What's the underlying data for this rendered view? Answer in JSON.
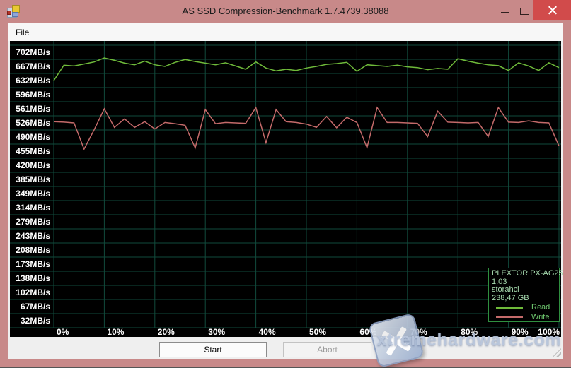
{
  "window": {
    "title": "AS SSD Compression-Benchmark 1.7.4739.38088",
    "titlebar_color": "#c88989",
    "close_button_color": "#d14b4b"
  },
  "menu": {
    "items": [
      {
        "label": "File"
      }
    ]
  },
  "buttons": {
    "start": "Start",
    "abort": "Abort"
  },
  "legend": {
    "device": "PLEXTOR PX-AG25",
    "firmware": "1.03",
    "driver": "storahci",
    "capacity": "238,47 GB",
    "read_label": "Read",
    "write_label": "Write"
  },
  "watermark": {
    "text": "xtremehardware.com"
  },
  "chart_data": {
    "type": "line",
    "title": "",
    "xlabel": "",
    "ylabel": "",
    "background": "#000000",
    "grid_color": "#114a3c",
    "grid": true,
    "legend_position": "bottom-right",
    "y_tick_max": 702,
    "y_tick_min": 32,
    "y_tick_step": 35,
    "y_ticks": [
      "702MB/s",
      "667MB/s",
      "632MB/s",
      "596MB/s",
      "561MB/s",
      "526MB/s",
      "490MB/s",
      "455MB/s",
      "420MB/s",
      "385MB/s",
      "349MB/s",
      "314MB/s",
      "279MB/s",
      "243MB/s",
      "208MB/s",
      "173MB/s",
      "138MB/s",
      "102MB/s",
      "67MB/s",
      "32MB/s"
    ],
    "x_ticks": [
      "0%",
      "10%",
      "20%",
      "30%",
      "40%",
      "50%",
      "60%",
      "70%",
      "80%",
      "90%",
      "100%"
    ],
    "x": [
      0,
      2,
      4,
      6,
      8,
      10,
      12,
      14,
      16,
      18,
      20,
      22,
      24,
      26,
      28,
      30,
      32,
      34,
      36,
      38,
      40,
      42,
      44,
      46,
      48,
      50,
      52,
      54,
      56,
      58,
      60,
      62,
      64,
      66,
      68,
      70,
      72,
      74,
      76,
      78,
      80,
      82,
      84,
      86,
      88,
      90,
      92,
      94,
      96,
      98,
      100
    ],
    "series": [
      {
        "name": "Read",
        "color": "#6fba3a",
        "values": [
          632,
          670,
          668,
          673,
          678,
          688,
          682,
          675,
          671,
          680,
          671,
          667,
          677,
          684,
          679,
          675,
          671,
          676,
          668,
          660,
          678,
          663,
          656,
          660,
          657,
          663,
          667,
          672,
          674,
          677,
          655,
          671,
          669,
          667,
          670,
          666,
          664,
          659,
          662,
          660,
          686,
          680,
          675,
          671,
          669,
          657,
          676,
          668,
          657,
          676,
          664
        ]
      },
      {
        "name": "Write",
        "color": "#c46a6a",
        "values": [
          530,
          529,
          527,
          462,
          510,
          562,
          516,
          537,
          516,
          530,
          512,
          528,
          525,
          521,
          465,
          560,
          525,
          528,
          527,
          526,
          565,
          478,
          560,
          530,
          528,
          524,
          516,
          543,
          515,
          541,
          528,
          466,
          565,
          528,
          528,
          527,
          526,
          493,
          556,
          529,
          528,
          527,
          528,
          493,
          565,
          529,
          528,
          532,
          528,
          527,
          470
        ]
      }
    ]
  }
}
